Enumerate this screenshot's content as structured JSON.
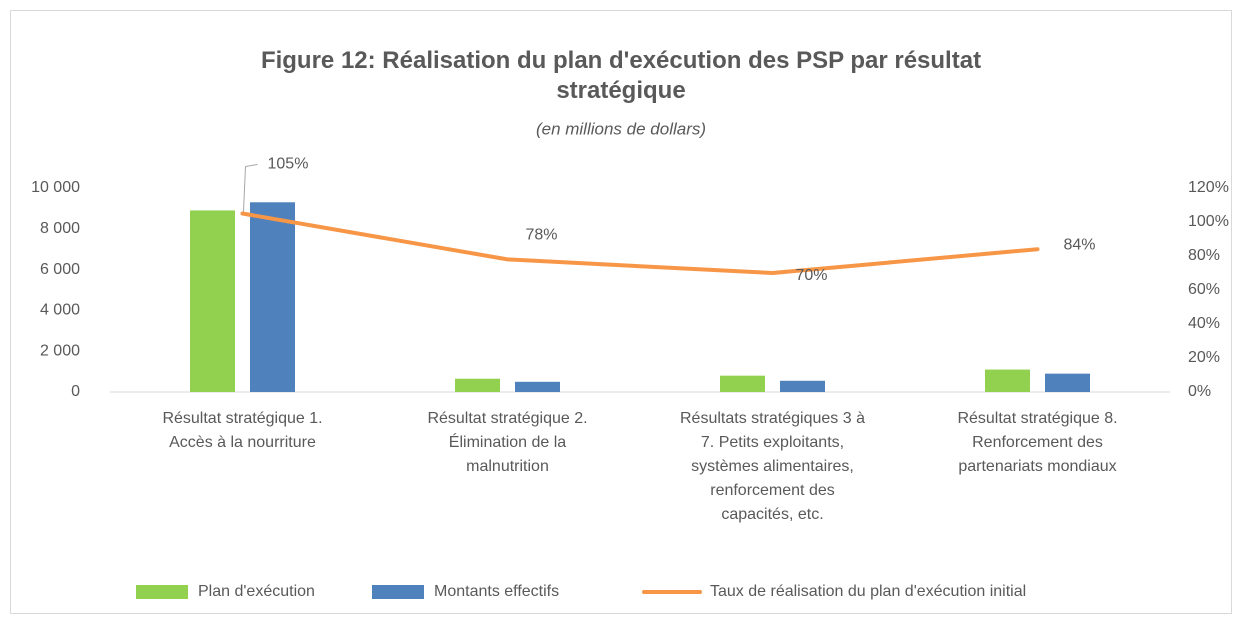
{
  "chart_data": {
    "type": "bar",
    "title": "Figure 12: Réalisation du plan d'exécution des PSP par résultat\nstratégique",
    "subtitle": "(en millions de dollars)",
    "categories": [
      "Résultat stratégique 1.\nAccès à la nourriture",
      "Résultat stratégique 2.\nÉlimination de la\nmalnutrition",
      "Résultats stratégiques 3 à\n7. Petits exploitants,\nsystèmes alimentaires,\nrenforcement des\ncapacités, etc.",
      "Résultat stratégique 8.\nRenforcement des\npartenariats mondiaux"
    ],
    "series": [
      {
        "name": "Plan d'exécution",
        "color": "#92d050",
        "values": [
          8900,
          650,
          800,
          1100
        ]
      },
      {
        "name": "Montants effectifs",
        "color": "#4f81bd",
        "values": [
          9300,
          500,
          550,
          900
        ]
      },
      {
        "name": "Taux de réalisation du plan d'exécution initial",
        "color": "#f79646",
        "type": "line",
        "axis": "y2",
        "values": [
          105,
          78,
          70,
          84
        ],
        "value_labels": [
          "105%",
          "78%",
          "70%",
          "84%"
        ]
      }
    ],
    "ylim": [
      0,
      10000
    ],
    "yticks": [
      0,
      {
        "value": 2000,
        "label": "2 000"
      },
      {
        "value": 4000,
        "label": "4 000"
      },
      {
        "value": 6000,
        "label": "6 000"
      },
      {
        "value": 8000,
        "label": "8 000"
      },
      {
        "value": 10000,
        "label": "10 000"
      }
    ],
    "y2lim": [
      0,
      120
    ],
    "y2ticks": [
      {
        "value": 0,
        "label": "0%"
      },
      {
        "value": 20,
        "label": "20%"
      },
      {
        "value": 40,
        "label": "40%"
      },
      {
        "value": 60,
        "label": "60%"
      },
      {
        "value": 80,
        "label": "80%"
      },
      {
        "value": 100,
        "label": "100%"
      },
      {
        "value": 120,
        "label": "120%"
      }
    ],
    "legend": "bottom"
  }
}
